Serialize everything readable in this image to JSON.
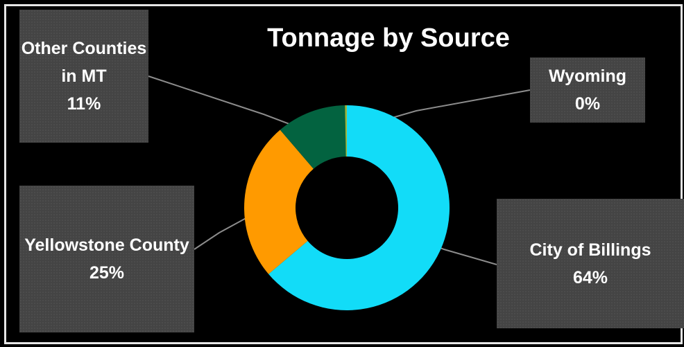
{
  "chart_data": {
    "type": "pie",
    "variant": "donut",
    "title": "Tonnage by Source",
    "slices": [
      {
        "label": "City of Billings",
        "percent_label": "64%",
        "value": 64,
        "color": "#12dcf8"
      },
      {
        "label": "Yellowstone County",
        "percent_label": "25%",
        "value": 25,
        "color": "#ff9a00"
      },
      {
        "label": "Other Counties in MT",
        "percent_label": "11%",
        "value": 11,
        "color": "#036340"
      },
      {
        "label": "Wyoming",
        "percent_label": "0%",
        "value": 0.3,
        "color": "#9fb53a"
      }
    ],
    "legend": "none",
    "background": "#000000"
  }
}
